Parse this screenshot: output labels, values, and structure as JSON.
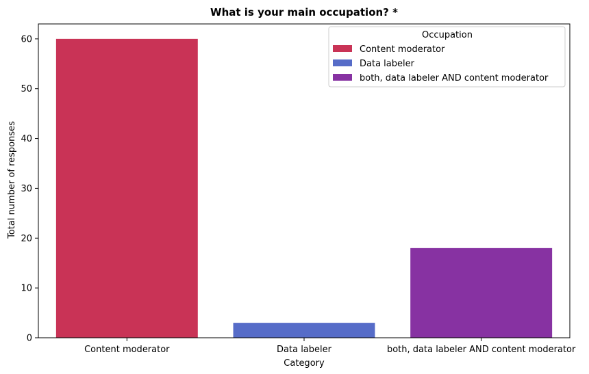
{
  "chart_data": {
    "type": "bar",
    "title": "What is your main occupation? *",
    "xlabel": "Category",
    "ylabel": "Total number of responses",
    "categories": [
      "Content moderator",
      "Data labeler",
      "both, data labeler AND content moderator"
    ],
    "values": [
      60,
      3,
      18
    ],
    "colors": [
      "#c93356",
      "#566cc8",
      "#8732a2"
    ],
    "ylim": [
      0,
      63
    ],
    "yticks": [
      0,
      10,
      20,
      30,
      40,
      50,
      60
    ],
    "grid": false,
    "legend": {
      "title": "Occupation",
      "placement": "top-right",
      "entries": [
        "Content moderator",
        "Data labeler",
        "both, data labeler AND content moderator"
      ]
    }
  }
}
